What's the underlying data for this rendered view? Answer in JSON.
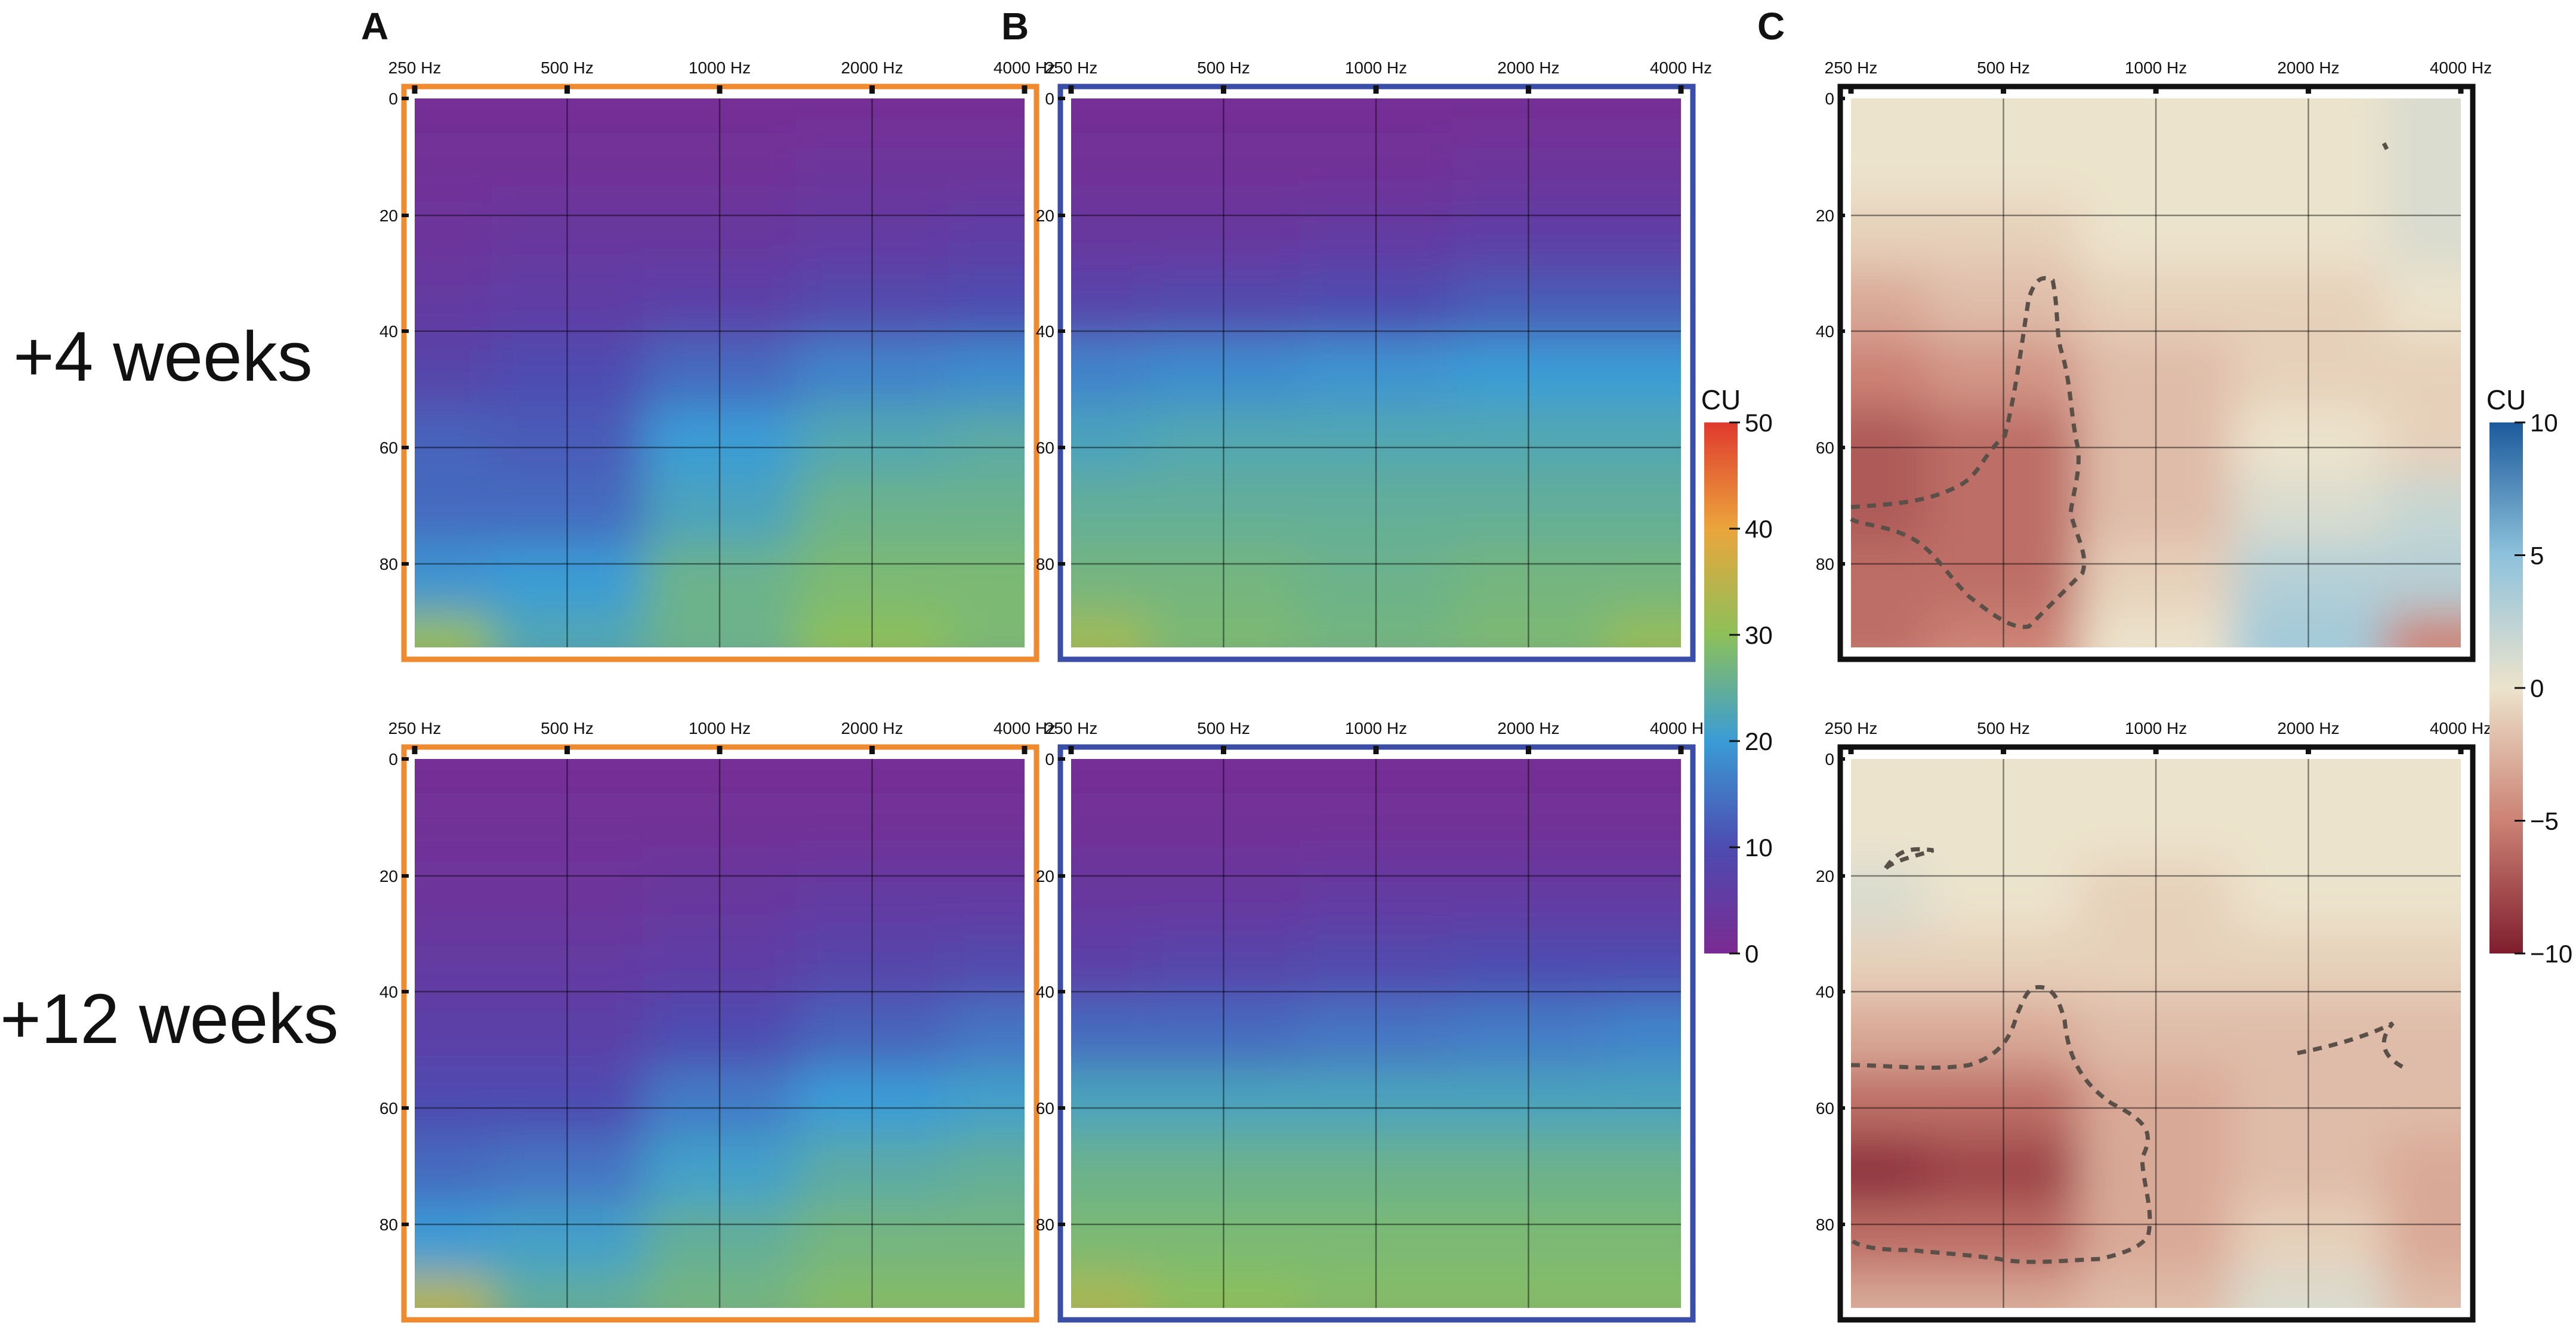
{
  "panel_letters": [
    "A",
    "B",
    "C"
  ],
  "row_labels": [
    "+4 weeks",
    "+12 weeks"
  ],
  "colorbars": [
    {
      "title": "CU",
      "ticks": [
        "50",
        "40",
        "30",
        "20",
        "10",
        "0"
      ],
      "range": [
        0,
        50
      ]
    },
    {
      "title": "CU",
      "ticks": [
        "10",
        "5",
        "0",
        "−5",
        "−10"
      ],
      "range": [
        -10,
        10
      ]
    }
  ],
  "colors": {
    "frame_a": "#F08A2E",
    "frame_b": "#3A4EA8",
    "frame_c": "#111111",
    "contour": "#5a5048"
  },
  "chart_data": [
    {
      "type": "heatmap",
      "id": "A-4w",
      "panel": "A",
      "row": "+4 weeks",
      "x_ticks": [
        "250 Hz",
        "500 Hz",
        "1000 Hz",
        "2000 Hz",
        "4000 Hz"
      ],
      "y_ticks": [
        "0",
        "20",
        "40",
        "60",
        "80"
      ],
      "x_range_hz": [
        250,
        4000
      ],
      "y_range": [
        0,
        95
      ],
      "color_scale": "CU 0-50",
      "grid": [
        [
          1,
          1,
          1,
          1,
          1
        ],
        [
          2,
          2,
          2,
          3,
          3
        ],
        [
          3,
          4,
          4,
          5,
          6
        ],
        [
          5,
          6,
          7,
          9,
          10
        ],
        [
          8,
          10,
          14,
          17,
          18
        ],
        [
          13,
          12,
          20,
          23,
          24
        ],
        [
          14,
          14,
          22,
          26,
          26
        ],
        [
          19,
          20,
          26,
          28,
          28
        ],
        [
          31,
          23,
          26,
          30,
          28
        ]
      ]
    },
    {
      "type": "heatmap",
      "id": "B-4w",
      "panel": "B",
      "row": "+4 weeks",
      "x_ticks": [
        "250 Hz",
        "500 Hz",
        "1000 Hz",
        "2000 Hz",
        "4000 Hz"
      ],
      "y_ticks": [
        "0",
        "20",
        "40",
        "60",
        "80"
      ],
      "x_range_hz": [
        250,
        4000
      ],
      "y_range": [
        0,
        95
      ],
      "color_scale": "CU 0-50",
      "grid": [
        [
          1,
          1,
          1,
          1,
          1
        ],
        [
          2,
          2,
          2,
          3,
          3
        ],
        [
          4,
          4,
          5,
          6,
          6
        ],
        [
          8,
          9,
          10,
          12,
          12
        ],
        [
          17,
          18,
          19,
          20,
          20
        ],
        [
          22,
          23,
          23,
          23,
          23
        ],
        [
          25,
          25,
          25,
          25,
          25
        ],
        [
          27,
          27,
          26,
          27,
          27
        ],
        [
          32,
          28,
          27,
          28,
          31
        ]
      ]
    },
    {
      "type": "heatmap",
      "id": "C-4w",
      "panel": "C",
      "row": "+4 weeks",
      "x_ticks": [
        "250 Hz",
        "500 Hz",
        "1000 Hz",
        "2000 Hz",
        "4000 Hz"
      ],
      "y_ticks": [
        "0",
        "20",
        "40",
        "60",
        "80"
      ],
      "x_range_hz": [
        250,
        4000
      ],
      "y_range": [
        0,
        95
      ],
      "color_scale": "CU -10-10",
      "grid": [
        [
          0,
          0,
          0,
          0,
          1
        ],
        [
          0,
          0,
          0,
          0,
          1
        ],
        [
          -1,
          -1,
          0,
          0,
          1
        ],
        [
          -3,
          -2,
          -1,
          -1,
          0
        ],
        [
          -5,
          -4,
          -2,
          -1,
          -1
        ],
        [
          -7,
          -6,
          -2,
          0,
          -1
        ],
        [
          -7,
          -6,
          -2,
          1,
          2
        ],
        [
          -6,
          -6,
          -1,
          3,
          3
        ],
        [
          -6,
          -5,
          0,
          4,
          -5
        ]
      ]
    },
    {
      "type": "heatmap",
      "id": "A-12w",
      "panel": "A",
      "row": "+12 weeks",
      "x_ticks": [
        "250 Hz",
        "500 Hz",
        "1000 Hz",
        "2000 Hz",
        "4000 Hz"
      ],
      "y_ticks": [
        "0",
        "20",
        "40",
        "60",
        "80"
      ],
      "x_range_hz": [
        250,
        4000
      ],
      "y_range": [
        0,
        95
      ],
      "color_scale": "CU 0-50",
      "grid": [
        [
          1,
          1,
          1,
          1,
          1
        ],
        [
          2,
          2,
          2,
          2,
          2
        ],
        [
          3,
          3,
          4,
          5,
          5
        ],
        [
          5,
          5,
          6,
          8,
          9
        ],
        [
          7,
          7,
          10,
          13,
          15
        ],
        [
          10,
          10,
          16,
          20,
          21
        ],
        [
          14,
          15,
          21,
          24,
          25
        ],
        [
          20,
          21,
          25,
          27,
          27
        ],
        [
          34,
          25,
          27,
          29,
          29
        ]
      ]
    },
    {
      "type": "heatmap",
      "id": "B-12w",
      "panel": "B",
      "row": "+12 weeks",
      "x_ticks": [
        "250 Hz",
        "500 Hz",
        "1000 Hz",
        "2000 Hz",
        "4000 Hz"
      ],
      "y_ticks": [
        "0",
        "20",
        "40",
        "60",
        "80"
      ],
      "x_range_hz": [
        250,
        4000
      ],
      "y_range": [
        0,
        95
      ],
      "color_scale": "CU 0-50",
      "grid": [
        [
          1,
          1,
          1,
          1,
          1
        ],
        [
          2,
          2,
          2,
          2,
          2
        ],
        [
          4,
          4,
          5,
          5,
          5
        ],
        [
          7,
          8,
          9,
          10,
          10
        ],
        [
          14,
          14,
          15,
          16,
          17
        ],
        [
          22,
          22,
          22,
          22,
          22
        ],
        [
          26,
          26,
          26,
          26,
          26
        ],
        [
          28,
          28,
          28,
          28,
          28
        ],
        [
          33,
          30,
          29,
          29,
          29
        ]
      ]
    },
    {
      "type": "heatmap",
      "id": "C-12w",
      "panel": "C",
      "row": "+12 weeks",
      "x_ticks": [
        "250 Hz",
        "500 Hz",
        "1000 Hz",
        "2000 Hz",
        "4000 Hz"
      ],
      "y_ticks": [
        "0",
        "20",
        "40",
        "60",
        "80"
      ],
      "x_range_hz": [
        250,
        4000
      ],
      "y_range": [
        0,
        95
      ],
      "color_scale": "CU -10-10",
      "grid": [
        [
          0,
          0,
          0,
          0,
          0
        ],
        [
          0,
          0,
          0,
          0,
          0
        ],
        [
          1,
          0,
          -1,
          0,
          0
        ],
        [
          -1,
          -1,
          -1,
          -1,
          -1
        ],
        [
          -3,
          -3,
          -2,
          -2,
          -2
        ],
        [
          -6,
          -6,
          -3,
          -2,
          -2
        ],
        [
          -9,
          -8,
          -3,
          -2,
          -3
        ],
        [
          -6,
          -6,
          -3,
          -1,
          -3
        ],
        [
          -3,
          -3,
          -2,
          1,
          -2
        ]
      ]
    }
  ]
}
